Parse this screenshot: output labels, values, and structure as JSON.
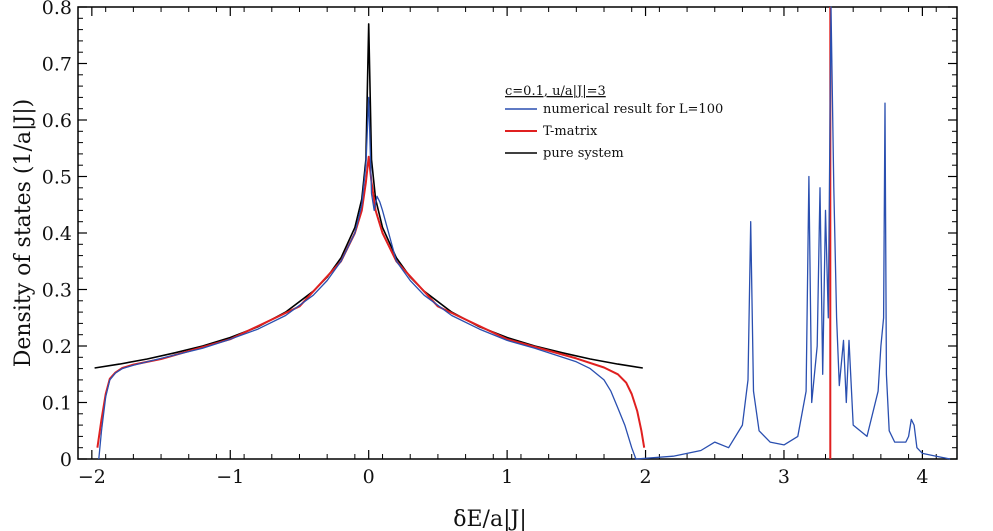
{
  "chart_data": {
    "type": "line",
    "title": "",
    "xlabel": "δE/a|J|",
    "ylabel": "Density of states (1/a|J|)",
    "xlim": [
      -2.1,
      4.25
    ],
    "ylim": [
      0,
      0.8
    ],
    "x_ticks": [
      -2,
      -1,
      0,
      1,
      2,
      3,
      4
    ],
    "x_tick_labels": [
      "−2",
      "−1",
      "0",
      "1",
      "2",
      "3",
      "4"
    ],
    "y_ticks": [
      0,
      0.1,
      0.2,
      0.3,
      0.4,
      0.5,
      0.6,
      0.7,
      0.8
    ],
    "y_tick_labels": [
      "0",
      "0.1",
      "0.2",
      "0.3",
      "0.4",
      "0.5",
      "0.6",
      "0.7",
      "0.8"
    ],
    "grid": false,
    "legend": {
      "title": "c=0.1, u/a|J|=3",
      "placement": "center-right",
      "entries": [
        {
          "label": "numerical result for L=100",
          "color": "#2a4fb0"
        },
        {
          "label": "T-matrix",
          "color": "#e02020"
        },
        {
          "label": "pure system",
          "color": "#000000"
        }
      ]
    },
    "series": [
      {
        "name": "pure system",
        "color": "#000000",
        "x": [
          -1.98,
          -1.8,
          -1.6,
          -1.4,
          -1.2,
          -1.0,
          -0.8,
          -0.6,
          -0.4,
          -0.3,
          -0.2,
          -0.1,
          -0.05,
          -0.02,
          0,
          0.02,
          0.05,
          0.1,
          0.2,
          0.3,
          0.4,
          0.6,
          0.8,
          1.0,
          1.2,
          1.4,
          1.6,
          1.8,
          1.98
        ],
        "y": [
          0.161,
          0.168,
          0.177,
          0.188,
          0.2,
          0.215,
          0.234,
          0.26,
          0.297,
          0.322,
          0.356,
          0.41,
          0.46,
          0.53,
          0.77,
          0.53,
          0.46,
          0.41,
          0.356,
          0.322,
          0.297,
          0.26,
          0.234,
          0.215,
          0.2,
          0.188,
          0.177,
          0.168,
          0.161
        ]
      },
      {
        "name": "numerical result for L=100",
        "color": "#2a4fb0",
        "x": [
          -1.95,
          -1.93,
          -1.9,
          -1.87,
          -1.83,
          -1.78,
          -1.7,
          -1.6,
          -1.4,
          -1.2,
          -1.0,
          -0.8,
          -0.6,
          -0.4,
          -0.3,
          -0.2,
          -0.1,
          -0.05,
          -0.02,
          0,
          0.02,
          0.04,
          0.06,
          0.08,
          0.1,
          0.2,
          0.3,
          0.4,
          0.6,
          0.8,
          1.0,
          1.2,
          1.4,
          1.5,
          1.6,
          1.7,
          1.75,
          1.8,
          1.85,
          1.9,
          1.93,
          2.2,
          2.4,
          2.5,
          2.6,
          2.7,
          2.74,
          2.76,
          2.78,
          2.82,
          2.9,
          3.0,
          3.1,
          3.16,
          3.18,
          3.2,
          3.24,
          3.26,
          3.28,
          3.3,
          3.32,
          3.34,
          3.36,
          3.38,
          3.4,
          3.43,
          3.45,
          3.47,
          3.5,
          3.55,
          3.6,
          3.68,
          3.7,
          3.72,
          3.73,
          3.74,
          3.76,
          3.8,
          3.88,
          3.9,
          3.92,
          3.94,
          3.96,
          4.0,
          4.1,
          4.2
        ],
        "y": [
          0.0,
          0.05,
          0.11,
          0.14,
          0.152,
          0.16,
          0.166,
          0.172,
          0.184,
          0.196,
          0.212,
          0.23,
          0.254,
          0.29,
          0.316,
          0.35,
          0.4,
          0.45,
          0.52,
          0.64,
          0.47,
          0.44,
          0.465,
          0.455,
          0.44,
          0.35,
          0.316,
          0.29,
          0.254,
          0.23,
          0.21,
          0.196,
          0.18,
          0.172,
          0.16,
          0.14,
          0.12,
          0.09,
          0.06,
          0.02,
          0.0,
          0.005,
          0.015,
          0.03,
          0.02,
          0.06,
          0.14,
          0.42,
          0.12,
          0.05,
          0.03,
          0.025,
          0.04,
          0.12,
          0.5,
          0.1,
          0.2,
          0.48,
          0.15,
          0.44,
          0.25,
          0.8,
          0.48,
          0.25,
          0.13,
          0.21,
          0.1,
          0.21,
          0.06,
          0.05,
          0.04,
          0.12,
          0.2,
          0.25,
          0.63,
          0.15,
          0.05,
          0.03,
          0.03,
          0.04,
          0.07,
          0.06,
          0.02,
          0.01,
          0.005,
          0.0
        ]
      },
      {
        "name": "T-matrix",
        "color": "#e02020",
        "x": [
          -1.96,
          -1.93,
          -1.9,
          -1.87,
          -1.83,
          -1.78,
          -1.7,
          -1.5,
          -1.0,
          -0.5,
          -0.2,
          -0.1,
          -0.05,
          -0.02,
          0,
          0.02,
          0.05,
          0.1,
          0.2,
          0.5,
          1.0,
          1.5,
          1.7,
          1.8,
          1.86,
          1.9,
          1.94,
          1.97,
          1.99
        ],
        "y": [
          0.02,
          0.07,
          0.115,
          0.142,
          0.153,
          0.161,
          0.167,
          0.177,
          0.212,
          0.27,
          0.35,
          0.4,
          0.44,
          0.49,
          0.535,
          0.49,
          0.44,
          0.4,
          0.35,
          0.27,
          0.212,
          0.178,
          0.162,
          0.15,
          0.135,
          0.115,
          0.085,
          0.05,
          0.02
        ]
      },
      {
        "name": "T-matrix bound-state peak",
        "color": "#e02020",
        "x": [
          3.335,
          3.335
        ],
        "y": [
          0.0,
          0.8
        ]
      }
    ]
  }
}
